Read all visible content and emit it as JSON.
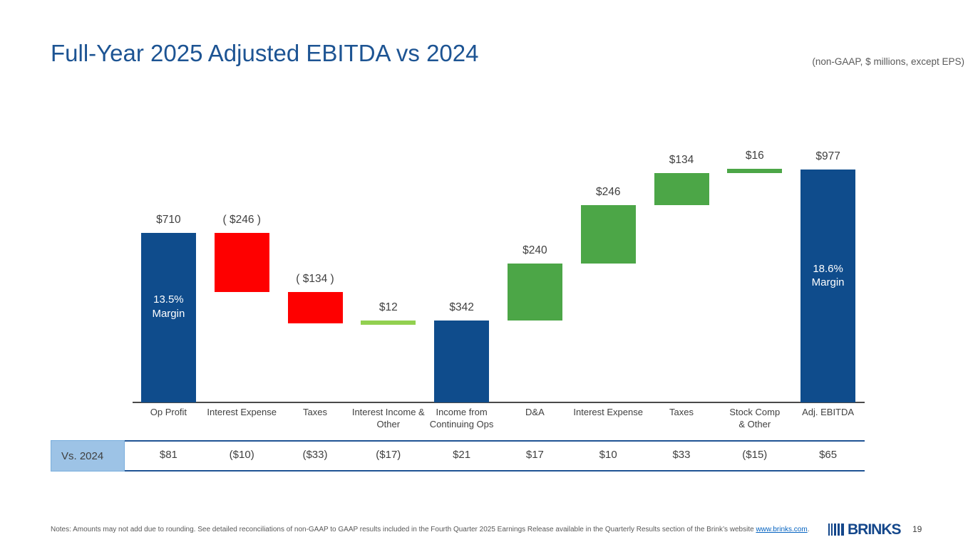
{
  "slide": {
    "title": "Full-Year 2025 Adjusted EBITDA vs 2024",
    "subtitle": "(non-GAAP, $ millions, except EPS)",
    "page_number": "19",
    "logo_text": "BRINKS",
    "notes_prefix": "Notes: Amounts may not add due to rounding. See detailed reconciliations of non-GAAP to GAAP results included in the Fourth Quarter 2025 Earnings Release available in the Quarterly Results section of the Brink’s website ",
    "notes_link": "www.brinks.com",
    "notes_suffix": "."
  },
  "colors": {
    "title_blue": "#1D5493",
    "bar_blue": "#0F4C8C",
    "bar_red": "#FE0000",
    "bar_green": "#4CA647",
    "bar_light_green": "#92D050",
    "axis_gray": "#4a4a4a",
    "text_gray": "#404040",
    "table_border_blue": "#1F5394",
    "table_header_bg": "#9DC3E6"
  },
  "chart_data": {
    "type": "bar",
    "subtype": "waterfall",
    "title": "Full-Year 2025 Adjusted EBITDA vs 2024",
    "unit": "$ millions",
    "ylim": [
      0,
      1070
    ],
    "grid": false,
    "legend": "none",
    "columns": [
      {
        "category": "Op Profit",
        "tick_label": "Op Profit",
        "value": 710,
        "start": 0,
        "end": 710,
        "kind": "total-start",
        "color_key": "bar_blue",
        "value_label": "$710",
        "inner_label": "13.5%\nMargin",
        "inner_offset": 84
      },
      {
        "category": "Interest Expense",
        "tick_label": "Interest Expense",
        "value": -246,
        "start": 710,
        "end": 464,
        "kind": "decrease",
        "color_key": "bar_red",
        "value_label": "( $246 )"
      },
      {
        "category": "Taxes",
        "tick_label": "Taxes",
        "value": -134,
        "start": 464,
        "end": 330,
        "kind": "decrease",
        "color_key": "bar_red",
        "value_label": "( $134 )"
      },
      {
        "category": "Interest Income & Other",
        "tick_label": "Interest Income &\nOther",
        "value": 12,
        "start": 330,
        "end": 342,
        "kind": "increase",
        "color_key": "bar_light_green",
        "value_label": "$12"
      },
      {
        "category": "Income from Continuing Ops",
        "tick_label": "Income from\nContinuing Ops",
        "value": 342,
        "start": 0,
        "end": 342,
        "kind": "subtotal",
        "color_key": "bar_blue",
        "value_label": "$342"
      },
      {
        "category": "D&A",
        "tick_label": "D&A",
        "value": 240,
        "start": 342,
        "end": 582,
        "kind": "increase",
        "color_key": "bar_green",
        "value_label": "$240"
      },
      {
        "category": "Interest Expense",
        "tick_label": "Interest Expense",
        "value": 246,
        "start": 582,
        "end": 828,
        "kind": "increase",
        "color_key": "bar_green",
        "value_label": "$246"
      },
      {
        "category": "Taxes",
        "tick_label": "Taxes",
        "value": 134,
        "start": 828,
        "end": 962,
        "kind": "increase",
        "color_key": "bar_green",
        "value_label": "$134"
      },
      {
        "category": "Stock Comp & Other",
        "tick_label": "Stock Comp\n& Other",
        "value": 16,
        "start": 962,
        "end": 978,
        "kind": "increase",
        "color_key": "bar_green",
        "value_label": "$16"
      },
      {
        "category": "Adj. EBITDA",
        "tick_label": "Adj. EBITDA",
        "value": 977,
        "start": 0,
        "end": 977,
        "kind": "total-end",
        "color_key": "bar_blue",
        "value_label": "$977",
        "inner_label": "18.6%\nMargin",
        "inner_offset": 130
      }
    ],
    "table_row": {
      "header": "Vs. 2024",
      "values": [
        "$81",
        "($10)",
        "($33)",
        "($17)",
        "$21",
        "$17",
        "$10",
        "$33",
        "($15)",
        "$65"
      ]
    }
  }
}
